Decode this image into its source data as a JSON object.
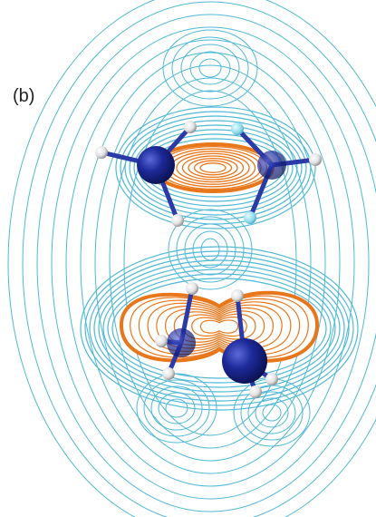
{
  "panel_label": "(b)"
}
